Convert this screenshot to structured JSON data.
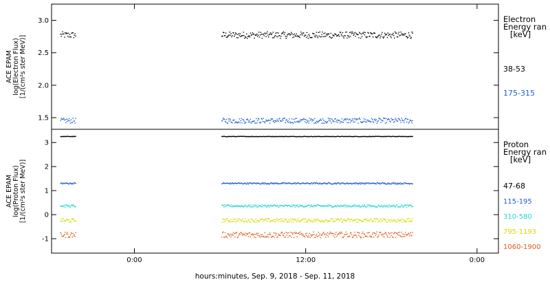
{
  "chart_data": [
    {
      "type": "scatter",
      "panel": "electron",
      "ylabel": [
        "ACE EPAM",
        "log(Electron Flux)",
        "[1/(cm²s ster MeV)]"
      ],
      "ylim": [
        1.32,
        3.25
      ],
      "yticks": [
        1.5,
        2.0,
        2.5,
        3.0
      ],
      "ytick_labels": [
        "1.5",
        "2.0",
        "2.5",
        "3.0"
      ],
      "grid": false,
      "legend": {
        "title": [
          "Electron",
          "Energy ran",
          "[keV]"
        ],
        "placement": "right"
      },
      "segments": [
        [
          -5.2,
          -4.1
        ],
        [
          6.1,
          19.5
        ]
      ],
      "series": [
        {
          "name": "38-53",
          "color": "#000000",
          "level": 2.78,
          "noise": 0.05
        },
        {
          "name": "175-315",
          "color": "#1f5bd6",
          "level": 1.46,
          "noise": 0.04
        }
      ]
    },
    {
      "type": "scatter",
      "panel": "proton",
      "ylabel": [
        "ACE EPAM",
        "log(Proton Flux)",
        "[1/(cm²s ster MeV)]"
      ],
      "ylim": [
        -1.6,
        3.55
      ],
      "yticks": [
        -1,
        0,
        1,
        2,
        3
      ],
      "ytick_labels": [
        "-1",
        "0",
        "1",
        "2",
        "3"
      ],
      "grid": false,
      "legend": {
        "title": [
          "Proton",
          "Energy ran",
          "[keV]"
        ],
        "placement": "right"
      },
      "segments": [
        [
          -5.2,
          -4.1
        ],
        [
          6.1,
          19.5
        ]
      ],
      "series": [
        {
          "name": "47-68",
          "color": "#000000",
          "level": 3.27,
          "noise": 0.01
        },
        {
          "name": "115-195",
          "color": "#1f5bd6",
          "level": 1.32,
          "noise": 0.03
        },
        {
          "name": "310-580",
          "color": "#22d3d3",
          "level": 0.38,
          "noise": 0.05
        },
        {
          "name": "795-1193",
          "color": "#d9d900",
          "level": -0.22,
          "noise": 0.08
        },
        {
          "name": "1060-1900",
          "color": "#e0591a",
          "level": -0.82,
          "noise": 0.12
        }
      ]
    }
  ],
  "x_axis": {
    "xlim": [
      -5.8,
      25.5
    ],
    "ticks": [
      0,
      12,
      24
    ],
    "tick_labels": [
      "0:00",
      "12:00",
      "0:00"
    ],
    "xlabel": "hours:minutes, Sep.  9, 2018 - Sep. 11, 2018"
  }
}
